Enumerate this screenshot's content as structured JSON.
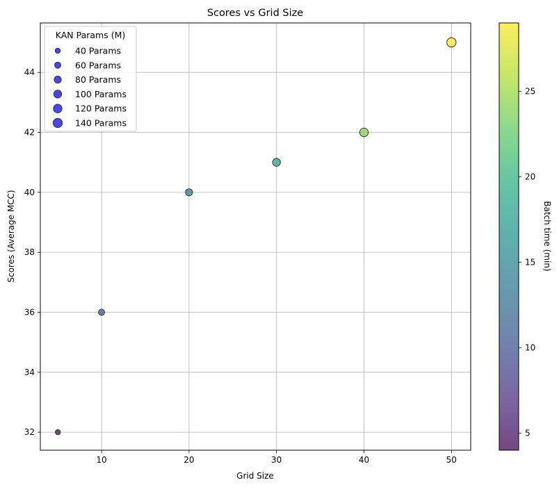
{
  "chart_data": {
    "type": "scatter",
    "title": "Scores vs Grid Size",
    "xlabel": "Grid Size",
    "ylabel": "Scores (Average MCC)",
    "xlim": [
      3,
      52.2
    ],
    "ylim": [
      31.4,
      45.65
    ],
    "xticks": [
      "10",
      "20",
      "30",
      "40",
      "50"
    ],
    "yticks": [
      "32",
      "34",
      "36",
      "38",
      "40",
      "42",
      "44"
    ],
    "grid": true,
    "points": [
      {
        "x": 5,
        "y": 32,
        "params": 40,
        "batch_time": 4
      },
      {
        "x": 10,
        "y": 36,
        "params": 60,
        "batch_time": 11
      },
      {
        "x": 20,
        "y": 40,
        "params": 80,
        "batch_time": 14
      },
      {
        "x": 30,
        "y": 41,
        "params": 100,
        "batch_time": 18
      },
      {
        "x": 40,
        "y": 42,
        "params": 120,
        "batch_time": 24
      },
      {
        "x": 50,
        "y": 45,
        "params": 140,
        "batch_time": 29
      }
    ],
    "legend": {
      "title": "KAN Params (M)",
      "placement": "top-left",
      "entries": [
        "40 Params",
        "60 Params",
        "80 Params",
        "100 Params",
        "120 Params",
        "140 Params"
      ],
      "color": "#0000e6"
    },
    "colorbar": {
      "label": "Batch time (min)",
      "range": [
        4,
        29
      ],
      "ticks": [
        "5",
        "10",
        "15",
        "20",
        "25"
      ],
      "colormap": "viridis"
    }
  }
}
